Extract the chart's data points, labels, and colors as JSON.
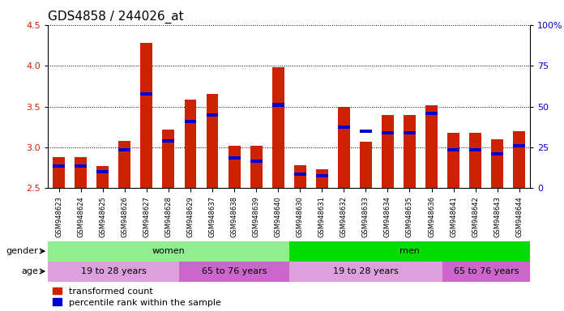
{
  "title": "GDS4858 / 244026_at",
  "samples": [
    "GSM948623",
    "GSM948624",
    "GSM948625",
    "GSM948626",
    "GSM948627",
    "GSM948628",
    "GSM948629",
    "GSM948637",
    "GSM948638",
    "GSM948639",
    "GSM948640",
    "GSM948630",
    "GSM948631",
    "GSM948632",
    "GSM948633",
    "GSM948634",
    "GSM948635",
    "GSM948636",
    "GSM948641",
    "GSM948642",
    "GSM948643",
    "GSM948644"
  ],
  "red_values": [
    2.88,
    2.88,
    2.77,
    3.08,
    4.28,
    3.22,
    3.58,
    3.65,
    3.02,
    3.02,
    3.98,
    2.78,
    2.73,
    3.5,
    3.07,
    3.4,
    3.4,
    3.52,
    3.18,
    3.18,
    3.1,
    3.2
  ],
  "blue_values": [
    2.77,
    2.77,
    2.7,
    2.97,
    3.65,
    3.08,
    3.32,
    3.4,
    2.87,
    2.83,
    3.52,
    2.67,
    2.65,
    3.25,
    3.2,
    3.18,
    3.18,
    3.42,
    2.97,
    2.97,
    2.92,
    3.02
  ],
  "ylim_left": [
    2.5,
    4.5
  ],
  "ylim_right": [
    0,
    100
  ],
  "yticks_left": [
    2.5,
    3.0,
    3.5,
    4.0,
    4.5
  ],
  "yticks_right": [
    0,
    25,
    50,
    75,
    100
  ],
  "ytick_labels_right": [
    "0",
    "25",
    "50",
    "75",
    "100%"
  ],
  "gender_labels": [
    {
      "text": "women",
      "start": 0,
      "end": 10,
      "color": "#90EE90"
    },
    {
      "text": "men",
      "start": 11,
      "end": 21,
      "color": "#00DD00"
    }
  ],
  "age_labels": [
    {
      "text": "19 to 28 years",
      "start": 0,
      "end": 5,
      "color": "#DDA0DD"
    },
    {
      "text": "65 to 76 years",
      "start": 6,
      "end": 10,
      "color": "#CC66CC"
    },
    {
      "text": "19 to 28 years",
      "start": 11,
      "end": 17,
      "color": "#DDA0DD"
    },
    {
      "text": "65 to 76 years",
      "start": 18,
      "end": 21,
      "color": "#CC66CC"
    }
  ],
  "bar_color": "#CC2200",
  "blue_color": "#0000CC",
  "bar_width": 0.55,
  "baseline": 2.5,
  "title_fontsize": 11,
  "tick_fontsize": 6,
  "label_fontsize": 8,
  "legend_fontsize": 8,
  "row_label_fontsize": 8
}
